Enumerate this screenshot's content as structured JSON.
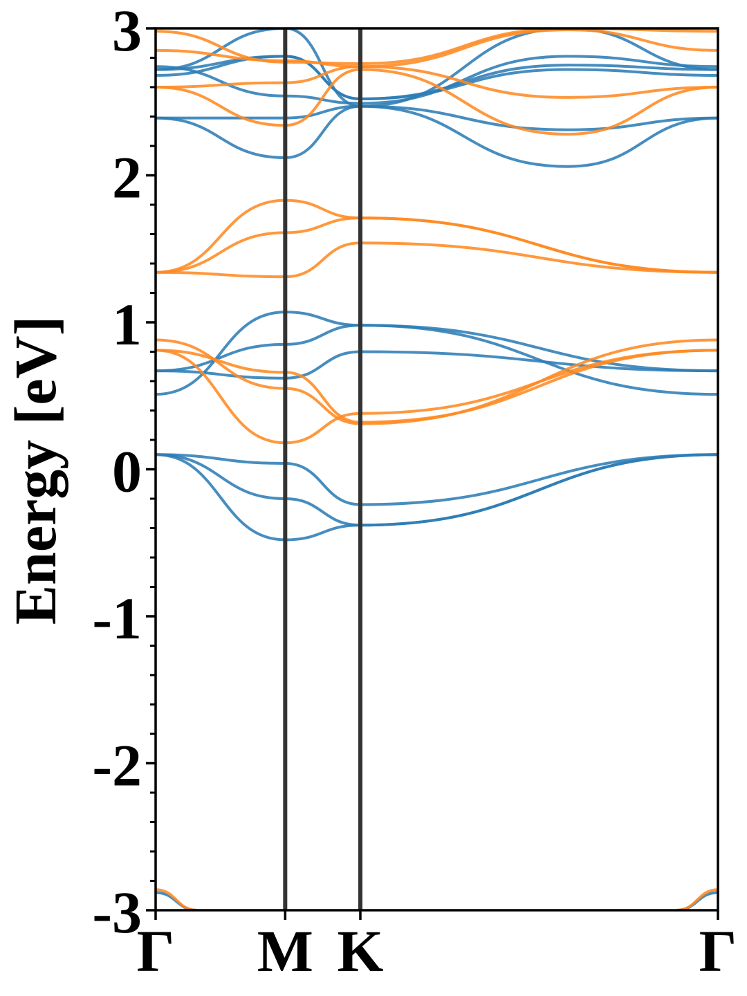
{
  "chart_data": {
    "type": "line",
    "title": "",
    "xlabel": "",
    "ylabel": "Energy [eV]",
    "ylim": [
      -3,
      3
    ],
    "yticks": [
      -3,
      -2,
      -1,
      0,
      1,
      2,
      3
    ],
    "ytick_labels": [
      "-3",
      "-2",
      "-1",
      "0",
      "1",
      "2",
      "3"
    ],
    "grid": false,
    "legend": "none",
    "xticks": [
      0,
      1,
      1.58,
      4.34
    ],
    "xtick_labels": [
      "Γ",
      "M",
      "K",
      "Γ"
    ],
    "path_segments": [
      {
        "from": "Γ",
        "to": "M",
        "x_start": 0,
        "x_end": 1
      },
      {
        "from": "M",
        "to": "K",
        "x_start": 1,
        "x_end": 1.58
      },
      {
        "from": "K",
        "to": "Γ",
        "x_start": 1.58,
        "x_end": 4.34
      }
    ],
    "colors": {
      "spin_up": "#2e7db6",
      "spin_down": "#ff8a22",
      "kpath_line": "#333333"
    },
    "series": [
      {
        "channel": "spin_up",
        "values": [
          [
            0.1,
            0.04,
            -0.24,
            0.1
          ]
        ]
      },
      {
        "channel": "spin_up",
        "values": [
          [
            0.1,
            -0.2,
            -0.38,
            0.1
          ]
        ]
      },
      {
        "channel": "spin_up",
        "values": [
          [
            0.1,
            -0.48,
            -0.38,
            0.1
          ]
        ]
      },
      {
        "channel": "spin_up",
        "values": [
          [
            0.51,
            1.07,
            0.98,
            0.51
          ]
        ]
      },
      {
        "channel": "spin_up",
        "values": [
          [
            0.67,
            0.85,
            0.98,
            0.67
          ]
        ]
      },
      {
        "channel": "spin_up",
        "values": [
          [
            0.67,
            0.62,
            0.8,
            0.67
          ]
        ]
      },
      {
        "channel": "spin_up",
        "values": [
          [
            2.39,
            2.12,
            2.47,
            2.06,
            2.39
          ]
        ]
      },
      {
        "channel": "spin_up",
        "values": [
          [
            2.39,
            2.39,
            2.47,
            2.31,
            2.39
          ]
        ]
      },
      {
        "channel": "spin_up",
        "values": [
          [
            2.74,
            2.54,
            2.49,
            2.81,
            2.74
          ]
        ]
      },
      {
        "channel": "spin_up",
        "values": [
          [
            2.68,
            2.81,
            2.52,
            2.72,
            2.68
          ]
        ]
      },
      {
        "channel": "spin_up",
        "values": [
          [
            2.72,
            2.81,
            2.52,
            2.75,
            2.72
          ]
        ]
      },
      {
        "channel": "spin_up",
        "values": [
          [
            2.72,
            3.0,
            2.47,
            3.0,
            2.72
          ]
        ]
      },
      {
        "channel": "spin_down",
        "values": [
          [
            0.88,
            0.55,
            0.31,
            0.88
          ]
        ]
      },
      {
        "channel": "spin_down",
        "values": [
          [
            0.81,
            0.66,
            0.32,
            0.81
          ]
        ]
      },
      {
        "channel": "spin_down",
        "values": [
          [
            0.81,
            0.18,
            0.38,
            0.81
          ]
        ]
      },
      {
        "channel": "spin_down",
        "values": [
          [
            1.34,
            1.31,
            1.54,
            1.34
          ]
        ]
      },
      {
        "channel": "spin_down",
        "values": [
          [
            1.34,
            1.61,
            1.71,
            1.34
          ]
        ]
      },
      {
        "channel": "spin_down",
        "values": [
          [
            1.34,
            1.83,
            1.71,
            1.34
          ]
        ]
      },
      {
        "channel": "spin_down",
        "values": [
          [
            2.6,
            2.34,
            2.72,
            2.28,
            2.6
          ]
        ]
      },
      {
        "channel": "spin_down",
        "values": [
          [
            2.6,
            2.63,
            2.74,
            2.53,
            2.6
          ]
        ]
      },
      {
        "channel": "spin_down",
        "values": [
          [
            2.85,
            2.78,
            2.74,
            2.99,
            2.85
          ]
        ]
      },
      {
        "channel": "spin_down",
        "values": [
          [
            2.98,
            2.77,
            2.76,
            3.0,
            2.98
          ]
        ]
      },
      {
        "channel": "spin_up",
        "values": [
          [
            -2.88,
            -3.0
          ]
        ]
      },
      {
        "channel": "spin_down",
        "values": [
          [
            -2.86,
            -3.0
          ]
        ]
      }
    ]
  }
}
